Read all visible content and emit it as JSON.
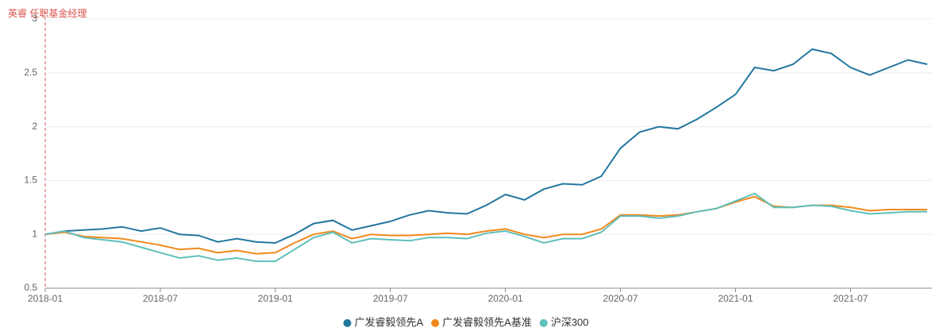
{
  "chart_data": {
    "type": "line",
    "annotation": "英睿 任职基金经理",
    "x": [
      "2018-01",
      "2018-02",
      "2018-03",
      "2018-04",
      "2018-05",
      "2018-06",
      "2018-07",
      "2018-08",
      "2018-09",
      "2018-10",
      "2018-11",
      "2018-12",
      "2019-01",
      "2019-02",
      "2019-03",
      "2019-04",
      "2019-05",
      "2019-06",
      "2019-07",
      "2019-08",
      "2019-09",
      "2019-10",
      "2019-11",
      "2019-12",
      "2020-01",
      "2020-02",
      "2020-03",
      "2020-04",
      "2020-05",
      "2020-06",
      "2020-07",
      "2020-08",
      "2020-09",
      "2020-10",
      "2020-11",
      "2020-12",
      "2021-01",
      "2021-02",
      "2021-03",
      "2021-04",
      "2021-05",
      "2021-06",
      "2021-07",
      "2021-08",
      "2021-09",
      "2021-10",
      "2021-11"
    ],
    "xlim": [
      "2018-01",
      "2021-11"
    ],
    "xticks": [
      "2018-01",
      "2018-07",
      "2019-01",
      "2019-07",
      "2020-01",
      "2020-07",
      "2021-01",
      "2021-07"
    ],
    "ylim": [
      0.5,
      3
    ],
    "yticks": [
      0.5,
      1,
      1.5,
      2,
      2.5,
      3
    ],
    "grid": true,
    "series": [
      {
        "name": "广发睿毅领先A",
        "color": "#23779f",
        "values": [
          1.0,
          1.03,
          1.04,
          1.05,
          1.07,
          1.03,
          1.06,
          1.0,
          0.99,
          0.93,
          0.96,
          0.93,
          0.92,
          1.0,
          1.1,
          1.13,
          1.04,
          1.08,
          1.12,
          1.18,
          1.22,
          1.2,
          1.19,
          1.27,
          1.37,
          1.32,
          1.42,
          1.47,
          1.46,
          1.54,
          1.8,
          1.95,
          2.0,
          1.98,
          2.07,
          2.18,
          2.3,
          2.55,
          2.52,
          2.58,
          2.72,
          2.68,
          2.55,
          2.48,
          2.55,
          2.62,
          2.58
        ]
      },
      {
        "name": "广发睿毅领先A基准",
        "color": "#f2891c",
        "values": [
          1.0,
          1.02,
          0.98,
          0.97,
          0.96,
          0.93,
          0.9,
          0.86,
          0.87,
          0.83,
          0.85,
          0.82,
          0.83,
          0.92,
          1.0,
          1.03,
          0.96,
          1.0,
          0.99,
          0.99,
          1.0,
          1.01,
          1.0,
          1.03,
          1.05,
          1.0,
          0.97,
          1.0,
          1.0,
          1.05,
          1.18,
          1.18,
          1.17,
          1.18,
          1.21,
          1.24,
          1.3,
          1.35,
          1.26,
          1.25,
          1.27,
          1.27,
          1.25,
          1.22,
          1.23,
          1.23,
          1.23
        ]
      },
      {
        "name": "沪深300",
        "color": "#5fbfbb",
        "values": [
          1.0,
          1.03,
          0.97,
          0.95,
          0.93,
          0.88,
          0.83,
          0.78,
          0.8,
          0.76,
          0.78,
          0.75,
          0.75,
          0.86,
          0.97,
          1.02,
          0.92,
          0.96,
          0.95,
          0.94,
          0.97,
          0.97,
          0.96,
          1.01,
          1.03,
          0.98,
          0.92,
          0.96,
          0.96,
          1.02,
          1.17,
          1.17,
          1.15,
          1.17,
          1.21,
          1.24,
          1.31,
          1.38,
          1.25,
          1.25,
          1.27,
          1.26,
          1.22,
          1.19,
          1.2,
          1.21,
          1.21
        ]
      }
    ]
  }
}
